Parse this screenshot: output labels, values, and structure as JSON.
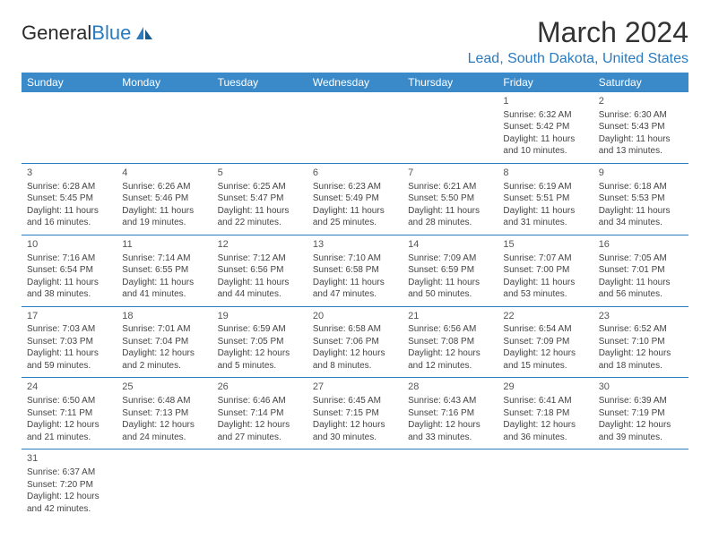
{
  "brand": {
    "part1": "General",
    "part2": "Blue"
  },
  "title": "March 2024",
  "location": "Lead, South Dakota, United States",
  "colors": {
    "header_bg": "#3a8ac9",
    "header_text": "#ffffff",
    "accent": "#2b7bbf",
    "text": "#444444",
    "title_text": "#333333"
  },
  "weekdays": [
    "Sunday",
    "Monday",
    "Tuesday",
    "Wednesday",
    "Thursday",
    "Friday",
    "Saturday"
  ],
  "weeks": [
    [
      null,
      null,
      null,
      null,
      null,
      {
        "n": "1",
        "sunrise": "Sunrise: 6:32 AM",
        "sunset": "Sunset: 5:42 PM",
        "daylight": "Daylight: 11 hours and 10 minutes."
      },
      {
        "n": "2",
        "sunrise": "Sunrise: 6:30 AM",
        "sunset": "Sunset: 5:43 PM",
        "daylight": "Daylight: 11 hours and 13 minutes."
      }
    ],
    [
      {
        "n": "3",
        "sunrise": "Sunrise: 6:28 AM",
        "sunset": "Sunset: 5:45 PM",
        "daylight": "Daylight: 11 hours and 16 minutes."
      },
      {
        "n": "4",
        "sunrise": "Sunrise: 6:26 AM",
        "sunset": "Sunset: 5:46 PM",
        "daylight": "Daylight: 11 hours and 19 minutes."
      },
      {
        "n": "5",
        "sunrise": "Sunrise: 6:25 AM",
        "sunset": "Sunset: 5:47 PM",
        "daylight": "Daylight: 11 hours and 22 minutes."
      },
      {
        "n": "6",
        "sunrise": "Sunrise: 6:23 AM",
        "sunset": "Sunset: 5:49 PM",
        "daylight": "Daylight: 11 hours and 25 minutes."
      },
      {
        "n": "7",
        "sunrise": "Sunrise: 6:21 AM",
        "sunset": "Sunset: 5:50 PM",
        "daylight": "Daylight: 11 hours and 28 minutes."
      },
      {
        "n": "8",
        "sunrise": "Sunrise: 6:19 AM",
        "sunset": "Sunset: 5:51 PM",
        "daylight": "Daylight: 11 hours and 31 minutes."
      },
      {
        "n": "9",
        "sunrise": "Sunrise: 6:18 AM",
        "sunset": "Sunset: 5:53 PM",
        "daylight": "Daylight: 11 hours and 34 minutes."
      }
    ],
    [
      {
        "n": "10",
        "sunrise": "Sunrise: 7:16 AM",
        "sunset": "Sunset: 6:54 PM",
        "daylight": "Daylight: 11 hours and 38 minutes."
      },
      {
        "n": "11",
        "sunrise": "Sunrise: 7:14 AM",
        "sunset": "Sunset: 6:55 PM",
        "daylight": "Daylight: 11 hours and 41 minutes."
      },
      {
        "n": "12",
        "sunrise": "Sunrise: 7:12 AM",
        "sunset": "Sunset: 6:56 PM",
        "daylight": "Daylight: 11 hours and 44 minutes."
      },
      {
        "n": "13",
        "sunrise": "Sunrise: 7:10 AM",
        "sunset": "Sunset: 6:58 PM",
        "daylight": "Daylight: 11 hours and 47 minutes."
      },
      {
        "n": "14",
        "sunrise": "Sunrise: 7:09 AM",
        "sunset": "Sunset: 6:59 PM",
        "daylight": "Daylight: 11 hours and 50 minutes."
      },
      {
        "n": "15",
        "sunrise": "Sunrise: 7:07 AM",
        "sunset": "Sunset: 7:00 PM",
        "daylight": "Daylight: 11 hours and 53 minutes."
      },
      {
        "n": "16",
        "sunrise": "Sunrise: 7:05 AM",
        "sunset": "Sunset: 7:01 PM",
        "daylight": "Daylight: 11 hours and 56 minutes."
      }
    ],
    [
      {
        "n": "17",
        "sunrise": "Sunrise: 7:03 AM",
        "sunset": "Sunset: 7:03 PM",
        "daylight": "Daylight: 11 hours and 59 minutes."
      },
      {
        "n": "18",
        "sunrise": "Sunrise: 7:01 AM",
        "sunset": "Sunset: 7:04 PM",
        "daylight": "Daylight: 12 hours and 2 minutes."
      },
      {
        "n": "19",
        "sunrise": "Sunrise: 6:59 AM",
        "sunset": "Sunset: 7:05 PM",
        "daylight": "Daylight: 12 hours and 5 minutes."
      },
      {
        "n": "20",
        "sunrise": "Sunrise: 6:58 AM",
        "sunset": "Sunset: 7:06 PM",
        "daylight": "Daylight: 12 hours and 8 minutes."
      },
      {
        "n": "21",
        "sunrise": "Sunrise: 6:56 AM",
        "sunset": "Sunset: 7:08 PM",
        "daylight": "Daylight: 12 hours and 12 minutes."
      },
      {
        "n": "22",
        "sunrise": "Sunrise: 6:54 AM",
        "sunset": "Sunset: 7:09 PM",
        "daylight": "Daylight: 12 hours and 15 minutes."
      },
      {
        "n": "23",
        "sunrise": "Sunrise: 6:52 AM",
        "sunset": "Sunset: 7:10 PM",
        "daylight": "Daylight: 12 hours and 18 minutes."
      }
    ],
    [
      {
        "n": "24",
        "sunrise": "Sunrise: 6:50 AM",
        "sunset": "Sunset: 7:11 PM",
        "daylight": "Daylight: 12 hours and 21 minutes."
      },
      {
        "n": "25",
        "sunrise": "Sunrise: 6:48 AM",
        "sunset": "Sunset: 7:13 PM",
        "daylight": "Daylight: 12 hours and 24 minutes."
      },
      {
        "n": "26",
        "sunrise": "Sunrise: 6:46 AM",
        "sunset": "Sunset: 7:14 PM",
        "daylight": "Daylight: 12 hours and 27 minutes."
      },
      {
        "n": "27",
        "sunrise": "Sunrise: 6:45 AM",
        "sunset": "Sunset: 7:15 PM",
        "daylight": "Daylight: 12 hours and 30 minutes."
      },
      {
        "n": "28",
        "sunrise": "Sunrise: 6:43 AM",
        "sunset": "Sunset: 7:16 PM",
        "daylight": "Daylight: 12 hours and 33 minutes."
      },
      {
        "n": "29",
        "sunrise": "Sunrise: 6:41 AM",
        "sunset": "Sunset: 7:18 PM",
        "daylight": "Daylight: 12 hours and 36 minutes."
      },
      {
        "n": "30",
        "sunrise": "Sunrise: 6:39 AM",
        "sunset": "Sunset: 7:19 PM",
        "daylight": "Daylight: 12 hours and 39 minutes."
      }
    ],
    [
      {
        "n": "31",
        "sunrise": "Sunrise: 6:37 AM",
        "sunset": "Sunset: 7:20 PM",
        "daylight": "Daylight: 12 hours and 42 minutes."
      },
      null,
      null,
      null,
      null,
      null,
      null
    ]
  ]
}
